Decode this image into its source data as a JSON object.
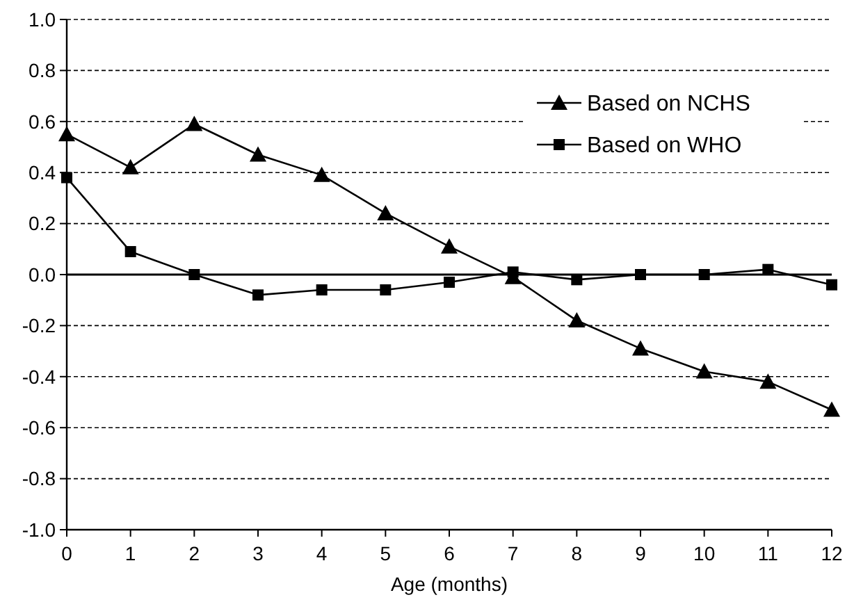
{
  "chart_data": {
    "type": "line",
    "xlabel": "Age (months)",
    "x": [
      0,
      1,
      2,
      3,
      4,
      5,
      6,
      7,
      8,
      9,
      10,
      11,
      12
    ],
    "series": [
      {
        "name": "Based on NCHS",
        "color": "#000000",
        "marker": "triangle",
        "values": [
          0.55,
          0.42,
          0.59,
          0.47,
          0.39,
          0.24,
          0.11,
          -0.01,
          -0.18,
          -0.29,
          -0.38,
          -0.42,
          -0.53
        ]
      },
      {
        "name": "Based on WHO",
        "color": "#000000",
        "marker": "square",
        "values": [
          0.38,
          0.09,
          0.0,
          -0.08,
          -0.06,
          -0.06,
          -0.03,
          0.01,
          -0.02,
          0.0,
          0.0,
          0.02,
          -0.04
        ]
      }
    ],
    "xlim": [
      0,
      12
    ],
    "xticks": [
      0,
      1,
      2,
      3,
      4,
      5,
      6,
      7,
      8,
      9,
      10,
      11,
      12
    ],
    "ylim": [
      -1.0,
      1.0
    ],
    "yticks": [
      {
        "value": -1.0,
        "label": "-1.0"
      },
      {
        "value": -0.8,
        "label": "-0.8"
      },
      {
        "value": -0.6,
        "label": "-0.6"
      },
      {
        "value": -0.4,
        "label": "-0.4"
      },
      {
        "value": -0.2,
        "label": "-0.2"
      },
      {
        "value": 0,
        "label": "0.0"
      },
      {
        "value": 0.2,
        "label": "0.2"
      },
      {
        "value": 0.4,
        "label": "0.4"
      },
      {
        "value": 0.6,
        "label": "0.6"
      },
      {
        "value": 0.8,
        "label": "0.8"
      },
      {
        "value": 1.0,
        "label": "1.0"
      }
    ],
    "ref_lines": [
      {
        "axis": "y",
        "value": 0,
        "color": "#000000",
        "line_style": "solid"
      }
    ],
    "grid": "y",
    "line_style": "solid",
    "legend": "top right"
  }
}
